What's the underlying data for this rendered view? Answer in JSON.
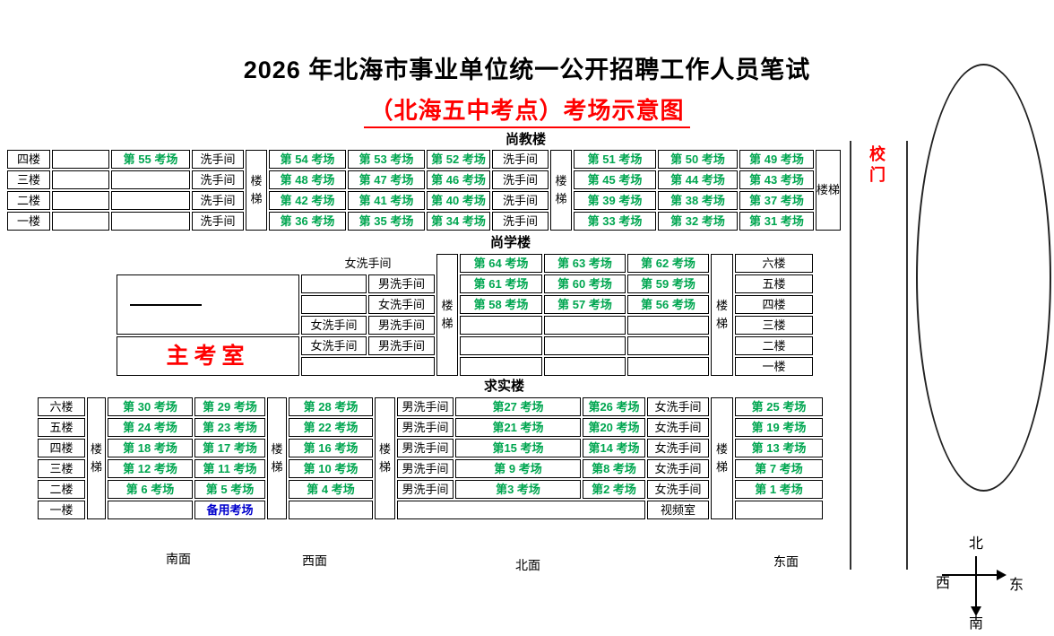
{
  "title": "2026 年北海市事业单位统一公开招聘工作人员笔试",
  "subtitle": "（北海五中考点）考场示意图",
  "colors": {
    "exam_green": "#00A650",
    "backup_blue": "#0000CC",
    "accent_red": "#FF0000"
  },
  "gate": {
    "label": "校门"
  },
  "compass": {
    "north": "北",
    "south": "南",
    "west": "西",
    "east": "东"
  },
  "side_labels": {
    "south": "南面",
    "west": "西面",
    "north": "北面",
    "east": "东面"
  },
  "buildings": {
    "shangjiao": {
      "name": "尚教楼",
      "rows": [
        [
          {
            "k": "floor",
            "t": "四楼"
          },
          {
            "k": "empty"
          },
          {
            "k": "exam",
            "t": "第 55 考场"
          },
          {
            "k": "wash",
            "t": "洗手间"
          },
          {
            "k": "stair",
            "t": "楼梯",
            "rs": 4
          },
          {
            "k": "exam",
            "t": "第 54 考场"
          },
          {
            "k": "exam",
            "t": "第 53 考场"
          },
          {
            "k": "exam",
            "t": "第 52 考场"
          },
          {
            "k": "wash",
            "t": "洗手间"
          },
          {
            "k": "stair",
            "t": "楼梯",
            "rs": 4
          },
          {
            "k": "exam",
            "t": "第 51 考场"
          },
          {
            "k": "exam",
            "t": "第 50 考场"
          },
          {
            "k": "exam",
            "t": "第 49 考场"
          },
          {
            "k": "stair",
            "t": "楼梯",
            "rs": 4
          }
        ],
        [
          {
            "k": "floor",
            "t": "三楼"
          },
          {
            "k": "empty"
          },
          {
            "k": "empty"
          },
          {
            "k": "wash",
            "t": "洗手间"
          },
          {
            "k": "exam",
            "t": "第 48 考场"
          },
          {
            "k": "exam",
            "t": "第 47 考场"
          },
          {
            "k": "exam",
            "t": "第 46 考场"
          },
          {
            "k": "wash",
            "t": "洗手间"
          },
          {
            "k": "exam",
            "t": "第 45 考场"
          },
          {
            "k": "exam",
            "t": "第 44 考场"
          },
          {
            "k": "exam",
            "t": "第 43 考场"
          }
        ],
        [
          {
            "k": "floor",
            "t": "二楼"
          },
          {
            "k": "empty"
          },
          {
            "k": "empty"
          },
          {
            "k": "wash",
            "t": "洗手间"
          },
          {
            "k": "exam",
            "t": "第 42 考场"
          },
          {
            "k": "exam",
            "t": "第 41 考场"
          },
          {
            "k": "exam",
            "t": "第 40 考场"
          },
          {
            "k": "wash",
            "t": "洗手间"
          },
          {
            "k": "exam",
            "t": "第 39 考场"
          },
          {
            "k": "exam",
            "t": "第 38 考场"
          },
          {
            "k": "exam",
            "t": "第 37 考场"
          }
        ],
        [
          {
            "k": "floor",
            "t": "一楼"
          },
          {
            "k": "empty"
          },
          {
            "k": "empty"
          },
          {
            "k": "wash",
            "t": "洗手间"
          },
          {
            "k": "exam",
            "t": "第 36 考场"
          },
          {
            "k": "exam",
            "t": "第 35 考场"
          },
          {
            "k": "exam",
            "t": "第 34 考场"
          },
          {
            "k": "wash",
            "t": "洗手间"
          },
          {
            "k": "exam",
            "t": "第 33 考场"
          },
          {
            "k": "exam",
            "t": "第 32 考场"
          },
          {
            "k": "exam",
            "t": "第 31 考场"
          }
        ]
      ]
    },
    "shangxue": {
      "name": "尚学楼",
      "rows": [
        [
          {
            "k": "void"
          },
          {
            "k": "washopen",
            "t": "女洗手间",
            "cs": 2
          },
          {
            "k": "stair",
            "t": "楼梯",
            "rs": 6
          },
          {
            "k": "exam",
            "t": "第 64 考场"
          },
          {
            "k": "exam",
            "t": "第 63 考场"
          },
          {
            "k": "exam",
            "t": "第 62 考场"
          },
          {
            "k": "stair",
            "t": "楼梯",
            "rs": 6
          },
          {
            "k": "floor",
            "t": "六楼"
          }
        ],
        [
          {
            "k": "dash",
            "rs": 3
          },
          {
            "k": "empty"
          },
          {
            "k": "wash",
            "t": "男洗手间"
          },
          {
            "k": "exam",
            "t": "第 61 考场"
          },
          {
            "k": "exam",
            "t": "第 60 考场"
          },
          {
            "k": "exam",
            "t": "第 59 考场"
          },
          {
            "k": "floor",
            "t": "五楼"
          }
        ],
        [
          {
            "k": "empty"
          },
          {
            "k": "wash",
            "t": "女洗手间"
          },
          {
            "k": "exam",
            "t": "第 58 考场"
          },
          {
            "k": "exam",
            "t": "第 57 考场"
          },
          {
            "k": "exam",
            "t": "第 56 考场"
          },
          {
            "k": "floor",
            "t": "四楼"
          }
        ],
        [
          {
            "k": "wash",
            "t": "女洗手间"
          },
          {
            "k": "wash",
            "t": "男洗手间"
          },
          {
            "k": "empty"
          },
          {
            "k": "empty"
          },
          {
            "k": "empty"
          },
          {
            "k": "floor",
            "t": "三楼"
          }
        ],
        [
          {
            "k": "main",
            "t": "主考室",
            "rs": 2
          },
          {
            "k": "wash",
            "t": "女洗手间"
          },
          {
            "k": "wash",
            "t": "男洗手间"
          },
          {
            "k": "empty"
          },
          {
            "k": "empty"
          },
          {
            "k": "empty"
          },
          {
            "k": "floor",
            "t": "二楼"
          }
        ],
        [
          {
            "k": "empty",
            "cs": 2
          },
          {
            "k": "empty"
          },
          {
            "k": "empty"
          },
          {
            "k": "empty"
          },
          {
            "k": "floor",
            "t": "一楼"
          }
        ]
      ]
    },
    "qiushi": {
      "name": "求实楼",
      "rows": [
        [
          {
            "k": "floor",
            "t": "六楼"
          },
          {
            "k": "stair",
            "t": "楼梯",
            "rs": 6
          },
          {
            "k": "exam",
            "t": "第 30 考场"
          },
          {
            "k": "exam",
            "t": "第 29 考场"
          },
          {
            "k": "stair",
            "t": "楼梯",
            "rs": 6
          },
          {
            "k": "exam",
            "t": "第 28 考场"
          },
          {
            "k": "stair",
            "t": "楼梯",
            "rs": 6
          },
          {
            "k": "wash",
            "t": "男洗手间"
          },
          {
            "k": "exam",
            "t": "第27 考场"
          },
          {
            "k": "exam",
            "t": "第26 考场"
          },
          {
            "k": "wash",
            "t": "女洗手间"
          },
          {
            "k": "stair",
            "t": "楼梯",
            "rs": 6
          },
          {
            "k": "exam",
            "t": "第 25 考场"
          }
        ],
        [
          {
            "k": "floor",
            "t": "五楼"
          },
          {
            "k": "exam",
            "t": "第 24 考场"
          },
          {
            "k": "exam",
            "t": "第 23 考场"
          },
          {
            "k": "exam",
            "t": "第 22 考场"
          },
          {
            "k": "wash",
            "t": "男洗手间"
          },
          {
            "k": "exam",
            "t": "第21 考场"
          },
          {
            "k": "exam",
            "t": "第20 考场"
          },
          {
            "k": "wash",
            "t": "女洗手间"
          },
          {
            "k": "exam",
            "t": "第 19 考场"
          }
        ],
        [
          {
            "k": "floor",
            "t": "四楼"
          },
          {
            "k": "exam",
            "t": "第 18 考场"
          },
          {
            "k": "exam",
            "t": "第 17 考场"
          },
          {
            "k": "exam",
            "t": "第 16 考场"
          },
          {
            "k": "wash",
            "t": "男洗手间"
          },
          {
            "k": "exam",
            "t": "第15 考场"
          },
          {
            "k": "exam",
            "t": "第14 考场"
          },
          {
            "k": "wash",
            "t": "女洗手间"
          },
          {
            "k": "exam",
            "t": "第 13 考场"
          }
        ],
        [
          {
            "k": "floor",
            "t": "三楼"
          },
          {
            "k": "exam",
            "t": "第 12 考场"
          },
          {
            "k": "exam",
            "t": "第 11 考场"
          },
          {
            "k": "exam",
            "t": "第 10 考场"
          },
          {
            "k": "wash",
            "t": "男洗手间"
          },
          {
            "k": "exam",
            "t": "第 9 考场"
          },
          {
            "k": "exam",
            "t": "第8 考场"
          },
          {
            "k": "wash",
            "t": "女洗手间"
          },
          {
            "k": "exam",
            "t": "第 7 考场"
          }
        ],
        [
          {
            "k": "floor",
            "t": "二楼"
          },
          {
            "k": "exam",
            "t": "第 6 考场"
          },
          {
            "k": "exam",
            "t": "第 5 考场"
          },
          {
            "k": "exam",
            "t": "第 4 考场"
          },
          {
            "k": "wash",
            "t": "男洗手间"
          },
          {
            "k": "exam",
            "t": "第3 考场"
          },
          {
            "k": "exam",
            "t": "第2 考场"
          },
          {
            "k": "wash",
            "t": "女洗手间"
          },
          {
            "k": "exam",
            "t": "第 1 考场"
          }
        ],
        [
          {
            "k": "floor",
            "t": "一楼"
          },
          {
            "k": "empty"
          },
          {
            "k": "backup",
            "t": "备用考场"
          },
          {
            "k": "empty"
          },
          {
            "k": "empty",
            "cs": 3
          },
          {
            "k": "video",
            "t": "视频室"
          },
          {
            "k": "empty"
          }
        ]
      ]
    }
  }
}
